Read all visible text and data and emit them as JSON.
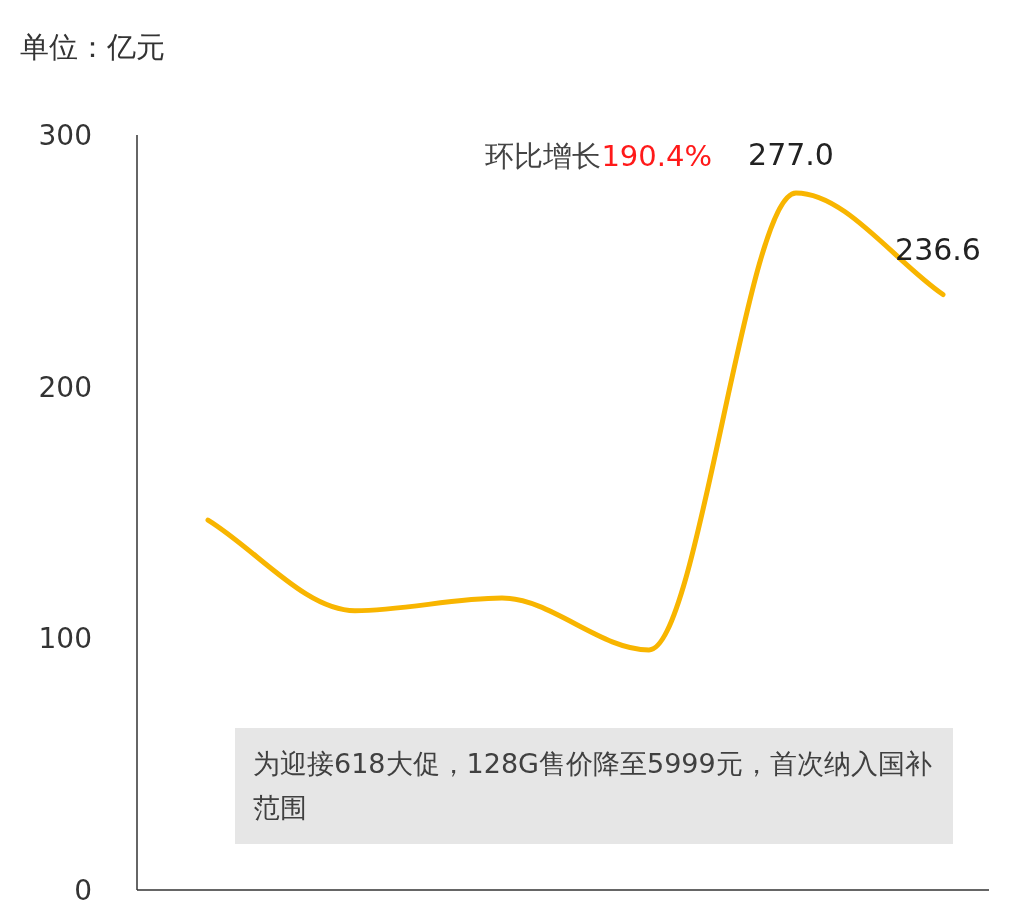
{
  "chart_data": {
    "type": "line",
    "ylabel": "单位：亿元",
    "categories": [
      null,
      null,
      null,
      null,
      null,
      null
    ],
    "series": [
      {
        "color": "#f8b500",
        "values": [
          147,
          111,
          116,
          95.4,
          277.0,
          236.6
        ],
        "value_labels": [
          null,
          null,
          null,
          null,
          "277.0",
          "236.6"
        ]
      }
    ],
    "ylim": [
      0,
      300
    ],
    "yticks": [
      0,
      100,
      200,
      300
    ],
    "grid": false,
    "marker": "none",
    "line_style": "solid",
    "annotations": [
      "环比增长190.4%",
      "为迎接618大促，128G售价降至5999元，首次纳入国补范围"
    ]
  }
}
